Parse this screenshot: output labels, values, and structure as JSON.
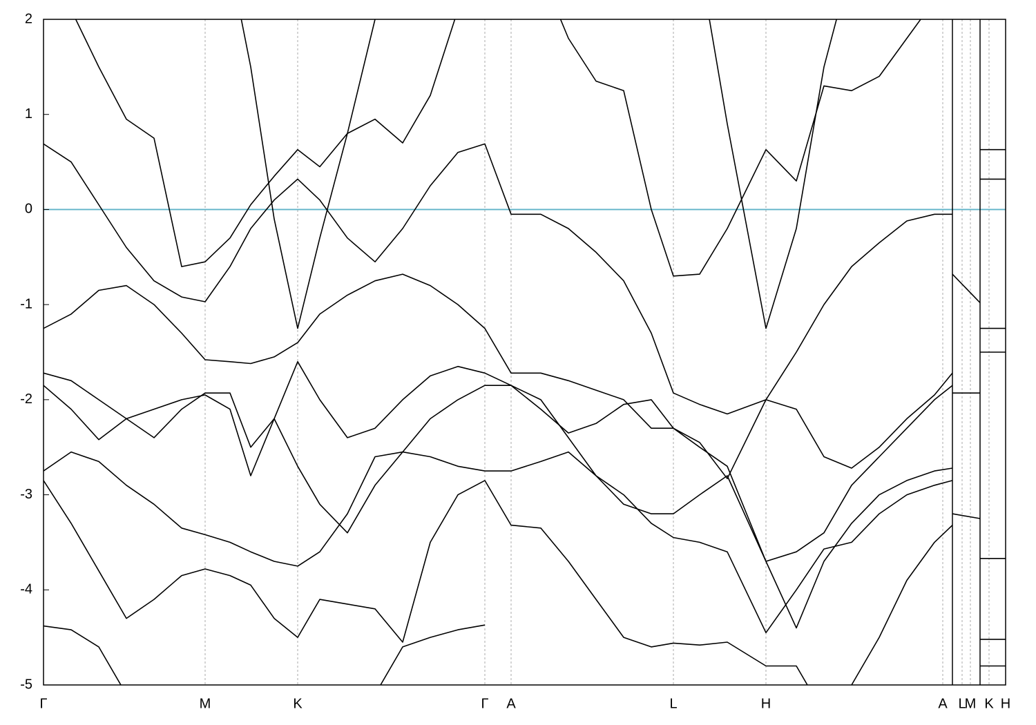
{
  "chart_data": {
    "type": "line",
    "xlim": [
      0,
      1393
    ],
    "ylim": [
      -5,
      2
    ],
    "yticks": [
      -5,
      -4,
      -3,
      -2,
      -1,
      0,
      1,
      2
    ],
    "xticks": [
      {
        "value": 0,
        "label": "Γ"
      },
      {
        "value": 234,
        "label": "M"
      },
      {
        "value": 368,
        "label": "K"
      },
      {
        "value": 639,
        "label": "Γ"
      },
      {
        "value": 677,
        "label": "A"
      },
      {
        "value": 912,
        "label": "L"
      },
      {
        "value": 1046,
        "label": "H"
      },
      {
        "value": 1302,
        "label": "A"
      },
      {
        "value": 1330,
        "label": "L"
      },
      {
        "value": 1342,
        "label": "M"
      },
      {
        "value": 1369,
        "label": "K"
      },
      {
        "value": 1393,
        "label": "H"
      }
    ],
    "breaks": [
      1316,
      1356
    ],
    "reference_line": {
      "value": 0,
      "color": "#5fb3c8"
    },
    "grid": true,
    "x": [
      0,
      40,
      80,
      120,
      160,
      200,
      234,
      270,
      300,
      334,
      368,
      400,
      440,
      480,
      520,
      560,
      600,
      639,
      677,
      720,
      760,
      800,
      840,
      880,
      912,
      950,
      990,
      1046,
      1090,
      1130,
      1170,
      1210,
      1250,
      1290,
      1316
    ],
    "series": [
      {
        "color": "#000000",
        "values": [
          0.69,
          0.5,
          0.05,
          -0.4,
          -0.75,
          -0.92,
          -0.97,
          -0.6,
          -0.2,
          0.1,
          0.32,
          0.1,
          -0.3,
          -0.55,
          -0.2,
          0.25,
          0.6,
          0.69,
          -0.05,
          -0.05,
          -0.2,
          -0.45,
          -0.75,
          -1.3,
          -1.93,
          -2.05,
          -2.15,
          -2.0,
          -1.5,
          -1.0,
          -0.6,
          -0.35,
          -0.12,
          -0.05,
          -0.05
        ]
      },
      {
        "color": "#000000",
        "values": [
          2.6,
          2.1,
          1.5,
          0.95,
          0.75,
          -0.6,
          -0.55,
          -0.3,
          0.05,
          0.35,
          0.63,
          0.45,
          0.8,
          0.95,
          0.7,
          1.2,
          2.1,
          2.6,
          2.6,
          2.5,
          1.8,
          1.35,
          1.25,
          0.0,
          -0.7,
          -0.68,
          -0.2,
          0.63,
          0.3,
          1.3,
          1.25,
          1.4,
          1.8,
          2.2,
          2.6
        ]
      },
      {
        "color": "#000000",
        "values": [
          -1.25,
          -1.1,
          -0.85,
          -0.8,
          -1.0,
          -1.3,
          -1.58,
          -1.6,
          -1.62,
          -1.55,
          -1.4,
          -1.1,
          -0.9,
          -0.75,
          -0.68,
          -0.8,
          -1.0,
          -1.25,
          -1.72,
          -1.72,
          -1.8,
          -1.9,
          -2.0,
          -2.3,
          -2.3,
          -2.45,
          -2.83,
          -2.0,
          -2.1,
          -2.6,
          -2.72,
          -2.5,
          -2.2,
          -1.95,
          -1.72
        ]
      },
      {
        "color": "#000000",
        "values": [
          -1.72,
          -1.8,
          -2.0,
          -2.2,
          -2.4,
          -2.1,
          -1.93,
          -1.93,
          -2.5,
          -2.2,
          -1.6,
          -2.0,
          -2.4,
          -2.3,
          -2.0,
          -1.75,
          -1.65,
          -1.72,
          -1.85,
          -2.1,
          -2.35,
          -2.25,
          -2.05,
          -2.0,
          -2.3,
          -2.5,
          -2.7,
          -3.7,
          -3.6,
          -3.4,
          -2.9,
          -2.6,
          -2.3,
          -2.0,
          -1.85
        ]
      },
      {
        "color": "#000000",
        "values": [
          -1.85,
          -2.1,
          -2.42,
          -2.2,
          -2.1,
          -2.0,
          -1.95,
          -2.1,
          -2.8,
          -2.2,
          -2.7,
          -3.1,
          -3.4,
          -2.9,
          -2.55,
          -2.2,
          -2.0,
          -1.85,
          -1.85,
          -2.0,
          -2.4,
          -2.8,
          -3.1,
          -3.2,
          -3.2,
          -3.0,
          -2.8,
          -3.7,
          -4.4,
          -3.7,
          -3.3,
          -3.0,
          -2.85,
          -2.75,
          -2.72
        ]
      },
      {
        "color": "#000000",
        "values": [
          -2.75,
          -2.55,
          -2.65,
          -2.9,
          -3.1,
          -3.35,
          -3.42,
          -3.5,
          -3.6,
          -3.7,
          -3.75,
          -3.6,
          -3.2,
          -2.6,
          -2.55,
          -2.6,
          -2.7,
          -2.75,
          -2.75,
          -2.65,
          -2.55,
          -2.8,
          -3.0,
          -3.3,
          -3.45,
          -3.5,
          -3.6,
          -4.45,
          -4.0,
          -3.57,
          -3.5,
          -3.2,
          -3.0,
          -2.9,
          -2.85
        ]
      },
      {
        "color": "#000000",
        "values": [
          -2.85,
          -3.3,
          -3.8,
          -4.3,
          -4.1,
          -3.85,
          -3.78,
          -3.85,
          -3.95,
          -4.3,
          -4.5,
          -4.1,
          -4.15,
          -4.2,
          -4.55,
          -3.5,
          -3.0,
          -2.85,
          -3.32,
          -3.35,
          -3.7,
          -4.1,
          -4.5,
          -4.6,
          -4.56,
          -4.58,
          -4.55,
          -4.8,
          -4.8,
          -5.3,
          -5.0,
          -4.5,
          -3.9,
          -3.5,
          -3.32
        ]
      },
      {
        "color": "#000000",
        "values": [
          -4.38,
          -4.42,
          -4.6,
          -5.1,
          null,
          null,
          null,
          null,
          null,
          null,
          null,
          null,
          null,
          -5.1,
          -4.6,
          -4.5,
          -4.42,
          -4.37,
          null,
          null,
          null,
          null,
          null,
          null,
          null,
          null,
          null,
          null,
          null,
          null,
          null,
          null,
          null,
          null,
          null
        ]
      },
      {
        "color": "#000000",
        "values": [
          null,
          null,
          null,
          null,
          null,
          null,
          null,
          2.6,
          1.5,
          -0.1,
          -1.25,
          -0.3,
          0.8,
          2.0,
          2.6,
          null,
          null,
          null,
          null,
          null,
          null,
          null,
          null,
          null,
          null,
          2.6,
          0.9,
          -1.25,
          -0.2,
          1.5,
          2.6,
          null,
          null,
          null,
          null
        ]
      },
      {
        "color": "#000000",
        "x": [
          1316,
          1356
        ],
        "values": [
          -0.68,
          -0.98
        ]
      },
      {
        "color": "#000000",
        "x": [
          1316,
          1356
        ],
        "values": [
          -1.93,
          -1.93
        ]
      },
      {
        "color": "#000000",
        "x": [
          1316,
          1356
        ],
        "values": [
          -3.2,
          -3.25
        ]
      },
      {
        "color": "#000000",
        "x": [
          1356,
          1393
        ],
        "values": [
          0.63,
          0.63
        ]
      },
      {
        "color": "#000000",
        "x": [
          1356,
          1393
        ],
        "values": [
          0.32,
          0.32
        ]
      },
      {
        "color": "#000000",
        "x": [
          1356,
          1393
        ],
        "values": [
          -1.25,
          -1.25
        ]
      },
      {
        "color": "#000000",
        "x": [
          1356,
          1393
        ],
        "values": [
          -1.5,
          -1.5
        ]
      },
      {
        "color": "#000000",
        "x": [
          1356,
          1393
        ],
        "values": [
          -3.67,
          -3.67
        ]
      },
      {
        "color": "#000000",
        "x": [
          1356,
          1393
        ],
        "values": [
          -4.52,
          -4.52
        ]
      },
      {
        "color": "#000000",
        "x": [
          1356,
          1393
        ],
        "values": [
          -4.8,
          -4.8
        ]
      }
    ]
  }
}
